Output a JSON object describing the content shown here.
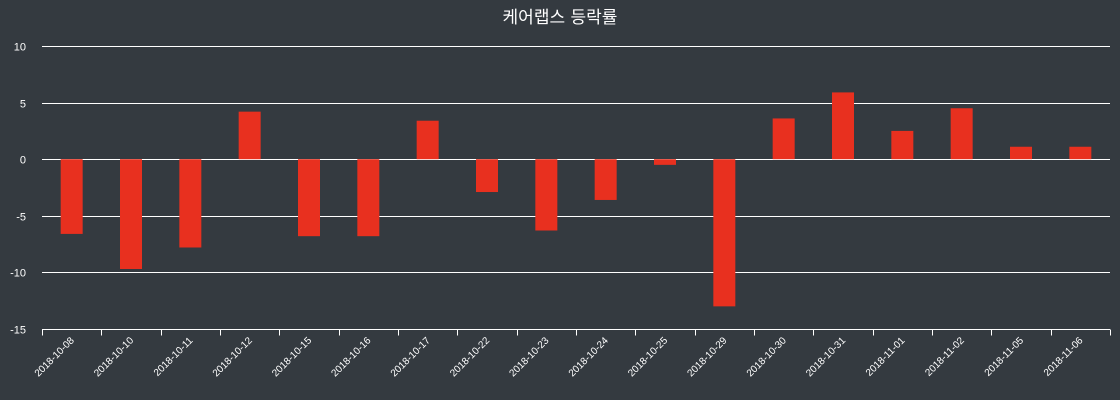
{
  "chart_data": {
    "type": "bar",
    "title": "케어랩스 등락률",
    "xlabel": "",
    "ylabel": "",
    "ylim": [
      -15,
      10
    ],
    "yticks": [
      10,
      5,
      0,
      -5,
      -10,
      -15
    ],
    "grid": true,
    "bar_color": "#e8301f",
    "categories": [
      "2018-10-08",
      "2018-10-10",
      "2018-10-11",
      "2018-10-12",
      "2018-10-15",
      "2018-10-16",
      "2018-10-17",
      "2018-10-22",
      "2018-10-23",
      "2018-10-24",
      "2018-10-25",
      "2018-10-29",
      "2018-10-30",
      "2018-10-31",
      "2018-11-01",
      "2018-11-02",
      "2018-11-05",
      "2018-11-06"
    ],
    "values": [
      -6.6,
      -9.7,
      -7.8,
      4.2,
      -6.8,
      -6.8,
      3.4,
      -2.9,
      -6.3,
      -3.6,
      -0.5,
      -13.0,
      3.6,
      5.9,
      2.5,
      4.5,
      1.1,
      1.1
    ]
  }
}
